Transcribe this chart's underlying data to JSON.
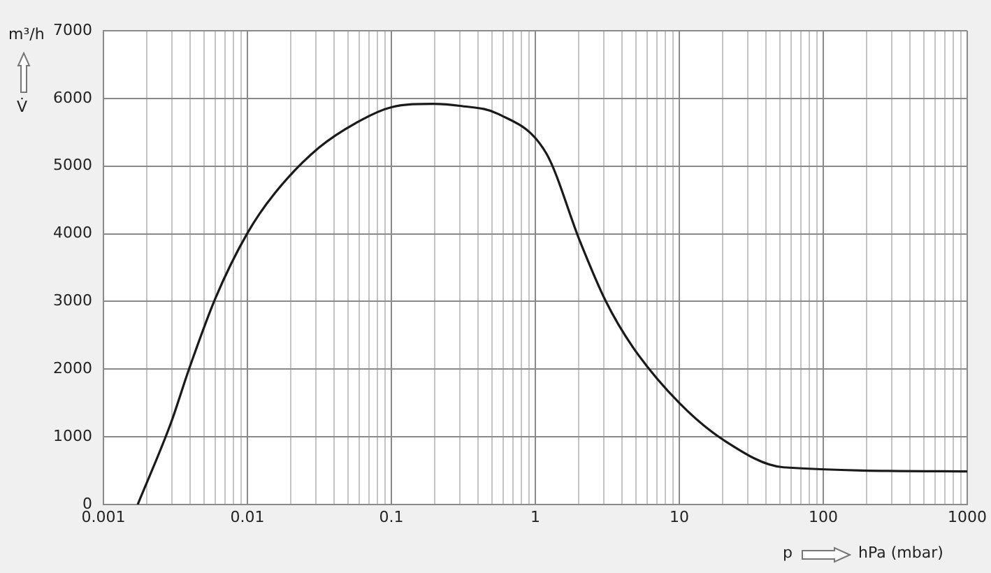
{
  "chart_data": {
    "type": "line",
    "xlabel": "hPa (mbar)",
    "ylabel": "m³/h",
    "annotations": [
      "V̇",
      "p"
    ],
    "log": "x",
    "grid": true,
    "legend": false,
    "marker": "none",
    "line_style": "solid",
    "xlim": [
      0.001,
      1000
    ],
    "ylim": [
      0,
      7000
    ],
    "yticks": [
      0,
      1000,
      2000,
      3000,
      4000,
      5000,
      6000,
      7000
    ],
    "xticks": [
      0.001,
      {
        "value": 0.002,
        "label": null
      },
      {
        "value": 0.003,
        "label": null
      },
      {
        "value": 0.004,
        "label": null
      },
      {
        "value": 0.005,
        "label": null
      },
      {
        "value": 0.006,
        "label": null
      },
      {
        "value": 0.007,
        "label": null
      },
      {
        "value": 0.008,
        "label": null
      },
      {
        "value": 0.009,
        "label": null
      },
      0.01,
      {
        "value": 0.02,
        "label": null
      },
      {
        "value": 0.03,
        "label": null
      },
      {
        "value": 0.04,
        "label": null
      },
      {
        "value": 0.05,
        "label": null
      },
      {
        "value": 0.06,
        "label": null
      },
      {
        "value": 0.07,
        "label": null
      },
      {
        "value": 0.08,
        "label": null
      },
      {
        "value": 0.09,
        "label": null
      },
      0.1,
      {
        "value": 0.2,
        "label": null
      },
      {
        "value": 0.3,
        "label": null
      },
      {
        "value": 0.4,
        "label": null
      },
      {
        "value": 0.5,
        "label": null
      },
      {
        "value": 0.6,
        "label": null
      },
      {
        "value": 0.7,
        "label": null
      },
      {
        "value": 0.8,
        "label": null
      },
      {
        "value": 0.9,
        "label": null
      },
      1,
      {
        "value": 2,
        "label": null
      },
      {
        "value": 3,
        "label": null
      },
      {
        "value": 4,
        "label": null
      },
      {
        "value": 5,
        "label": null
      },
      {
        "value": 6,
        "label": null
      },
      {
        "value": 7,
        "label": null
      },
      {
        "value": 8,
        "label": null
      },
      {
        "value": 9,
        "label": null
      },
      10,
      {
        "value": 20,
        "label": null
      },
      {
        "value": 30,
        "label": null
      },
      {
        "value": 40,
        "label": null
      },
      {
        "value": 50,
        "label": null
      },
      {
        "value": 60,
        "label": null
      },
      {
        "value": 70,
        "label": null
      },
      {
        "value": 80,
        "label": null
      },
      {
        "value": 90,
        "label": null
      },
      100,
      {
        "value": 200,
        "label": null
      },
      {
        "value": 300,
        "label": null
      },
      {
        "value": 400,
        "label": null
      },
      {
        "value": 500,
        "label": null
      },
      {
        "value": 600,
        "label": null
      },
      {
        "value": 700,
        "label": null
      },
      {
        "value": 800,
        "label": null
      },
      {
        "value": 900,
        "label": null
      },
      1000
    ],
    "series": [
      {
        "color": "#1a1a1a",
        "x": [
          0.00173,
          0.00295,
          0.0039,
          0.006,
          0.01,
          0.0155,
          0.0313,
          0.0617,
          0.1,
          0.195,
          0.3,
          0.553,
          1.19,
          2.05,
          3.06,
          4.74,
          10,
          20.4,
          53,
          1000
        ],
        "values": [
          0,
          1210,
          1980,
          3050,
          4010,
          4600,
          5270,
          5680,
          5870,
          5920,
          5890,
          5770,
          5190,
          3880,
          3020,
          2330,
          1500,
          950,
          550,
          490
        ]
      }
    ]
  }
}
